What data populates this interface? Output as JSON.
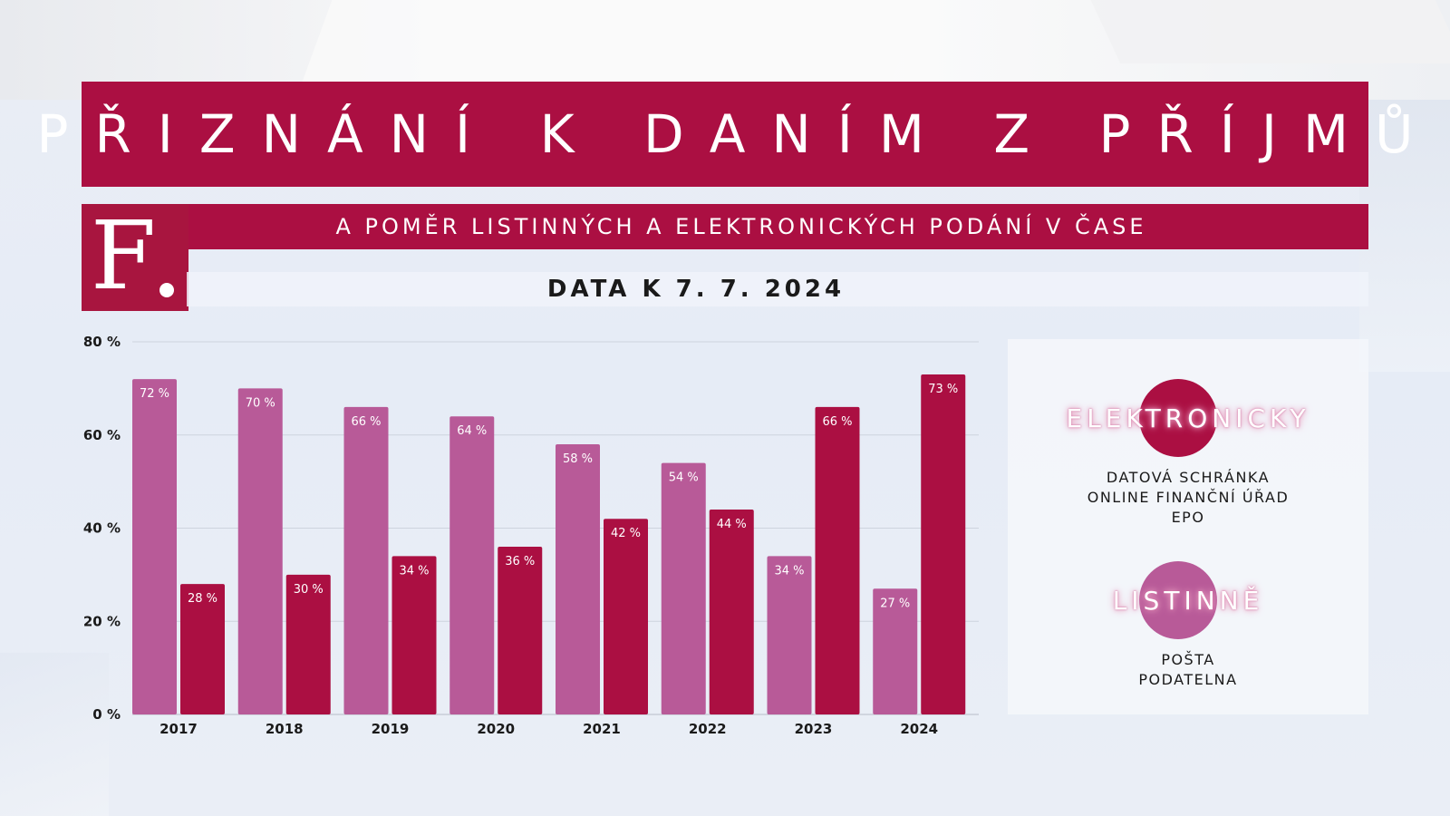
{
  "header": {
    "title": "PŘIZNÁNÍ K DANÍM Z PŘÍJMŮ",
    "subtitle": "A POMĚR LISTINNÝCH A ELEKTRONICKÝCH PODÁNÍ V ČASE",
    "date": "DATA K 7. 7. 2024",
    "logo_letter": "F"
  },
  "colors": {
    "brand": "#ab0f42",
    "listinne": "#b85a98",
    "elektronicky": "#ab0f42"
  },
  "legend": {
    "items": [
      {
        "name": "ELEKTRONICKY",
        "lines": [
          "DATOVÁ SCHRÁNKA",
          "ONLINE FINANČNÍ ÚŘAD",
          "EPO"
        ]
      },
      {
        "name": "LISTINNĚ",
        "lines": [
          "POŠTA",
          "PODATELNA"
        ]
      }
    ]
  },
  "chart_data": {
    "type": "bar",
    "title": "PŘIZNÁNÍ K DANÍM Z PŘÍJMŮ",
    "subtitle": "A POMĚR LISTINNÝCH A ELEKTRONICKÝCH PODÁNÍ V ČASE",
    "categories": [
      "2017",
      "2018",
      "2019",
      "2020",
      "2021",
      "2022",
      "2023",
      "2024"
    ],
    "series": [
      {
        "name": "LISTINNĚ",
        "color": "#b85a98",
        "values": [
          72,
          70,
          66,
          64,
          58,
          54,
          34,
          27
        ]
      },
      {
        "name": "ELEKTRONICKY",
        "color": "#ab0f42",
        "values": [
          28,
          30,
          34,
          36,
          42,
          44,
          66,
          73
        ]
      }
    ],
    "yticks": [
      "0 %",
      "20 %",
      "40 %",
      "60 %",
      "80 %"
    ],
    "ylim": [
      0,
      80
    ],
    "grid": true,
    "legend": "right",
    "value_suffix": " %"
  }
}
